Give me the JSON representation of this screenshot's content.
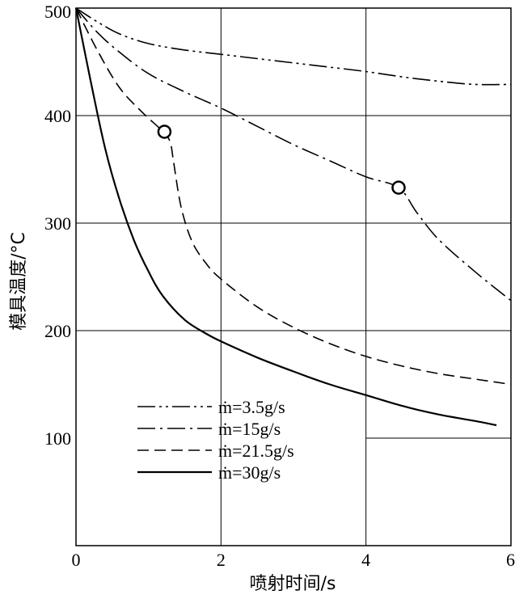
{
  "chart_data": {
    "type": "line",
    "xlabel": "喷射时间/s",
    "ylabel": "模具温度/°C",
    "xlim": [
      0,
      6
    ],
    "ylim": [
      0,
      500
    ],
    "xticks": [
      "0",
      "2",
      "4",
      "6"
    ],
    "yticks": [
      "100",
      "200",
      "300",
      "400",
      "500"
    ],
    "grid": true,
    "legend_position": "bottom-left",
    "series": [
      {
        "name": "ṁ=3.5g/s",
        "style": "dash-dot-dot",
        "x": [
          0,
          0.3,
          0.6,
          1.0,
          1.5,
          2.0,
          2.5,
          3.0,
          3.5,
          4.0,
          4.5,
          5.0,
          5.5,
          6.0
        ],
        "y": [
          500,
          487,
          476,
          467,
          461,
          457,
          453,
          449,
          445,
          441,
          436,
          432,
          429,
          429
        ]
      },
      {
        "name": "ṁ=15g/s",
        "style": "dash-dot",
        "x": [
          0,
          0.3,
          0.6,
          1.0,
          1.5,
          2.0,
          2.5,
          3.0,
          3.5,
          4.0,
          4.45,
          4.7,
          5.0,
          5.5,
          6.0
        ],
        "y": [
          500,
          477,
          459,
          439,
          422,
          407,
          390,
          373,
          358,
          343,
          333,
          310,
          285,
          255,
          228
        ]
      },
      {
        "name": "ṁ=21.5g/s",
        "style": "dashed",
        "x": [
          0,
          0.3,
          0.6,
          0.9,
          1.2,
          1.3,
          1.35,
          1.45,
          1.6,
          1.8,
          2.0,
          2.5,
          3.0,
          3.5,
          4.0,
          4.5,
          5.0,
          5.5,
          6.0
        ],
        "y": [
          500,
          460,
          426,
          404,
          385,
          375,
          355,
          315,
          283,
          262,
          248,
          222,
          203,
          188,
          176,
          167,
          160,
          155,
          150
        ]
      },
      {
        "name": "ṁ=30g/s",
        "style": "solid",
        "x": [
          0,
          0.2,
          0.4,
          0.6,
          0.8,
          1.0,
          1.2,
          1.5,
          1.8,
          2.0,
          2.5,
          3.0,
          3.5,
          4.0,
          4.5,
          5.0,
          5.5,
          5.8
        ],
        "y": [
          500,
          433,
          370,
          322,
          284,
          255,
          232,
          210,
          197,
          190,
          175,
          162,
          150,
          140,
          130,
          122,
          116,
          112
        ]
      }
    ],
    "markers": [
      {
        "x": 1.22,
        "y": 385
      },
      {
        "x": 4.45,
        "y": 333
      }
    ]
  }
}
